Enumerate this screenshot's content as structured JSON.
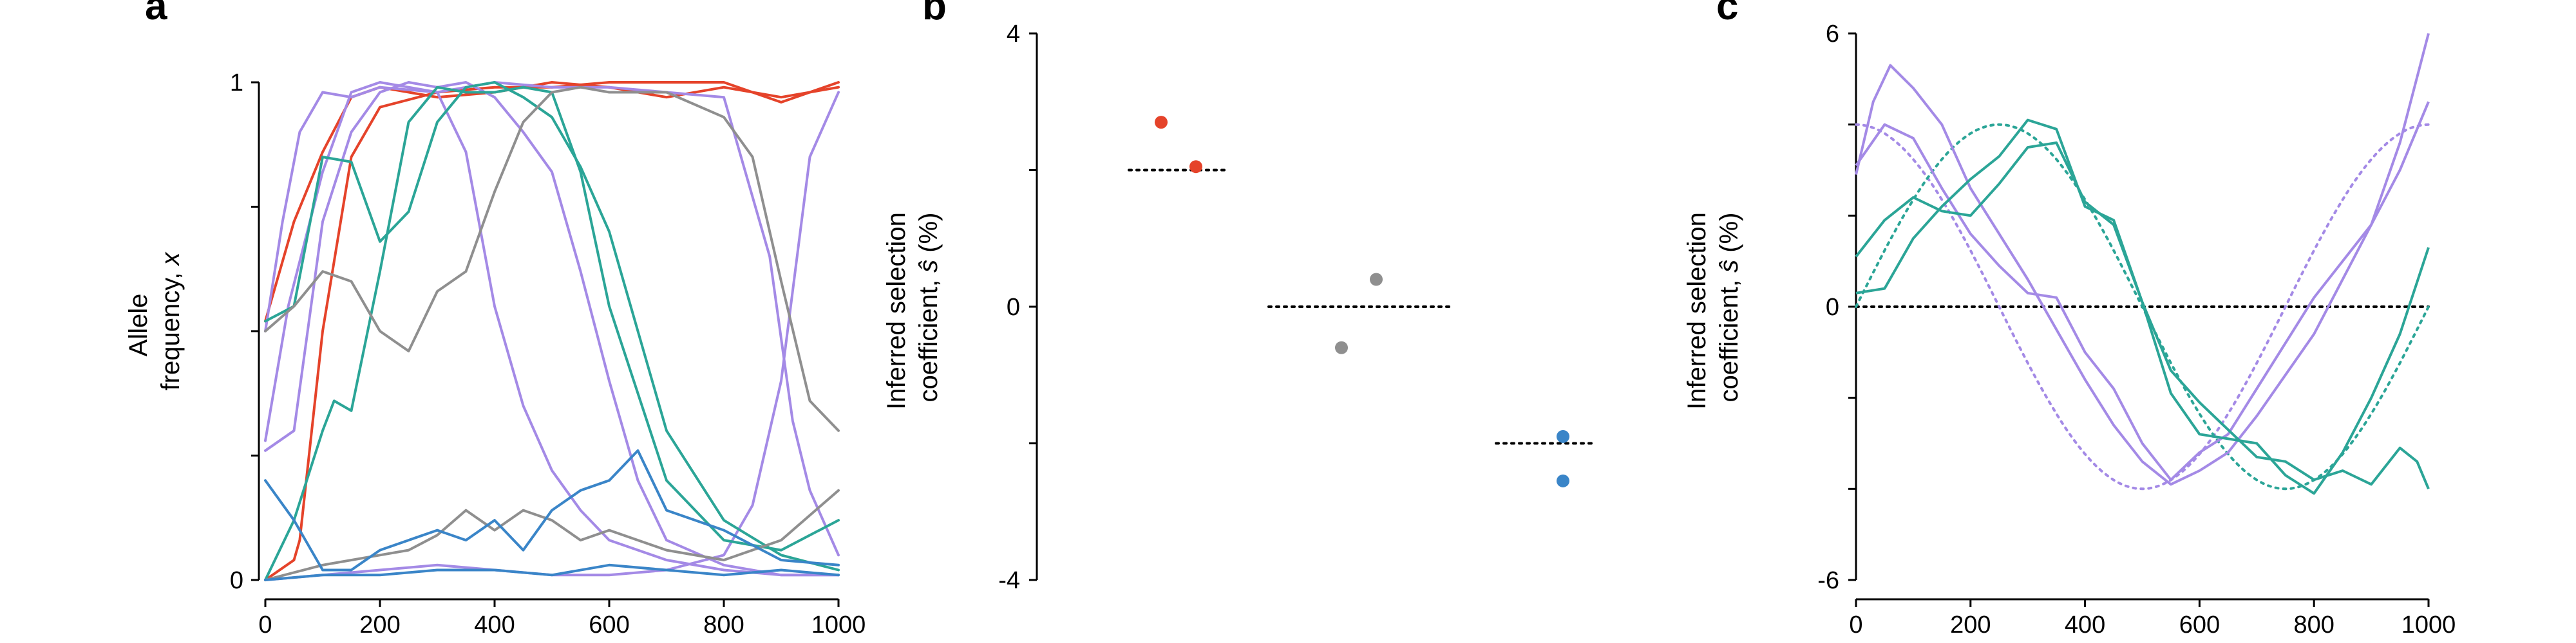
{
  "colors": {
    "red": "#e5432a",
    "purple": "#a48ae6",
    "teal": "#2ba597",
    "gray": "#8f8f8f",
    "blue": "#3a85c8",
    "black": "#000000"
  },
  "chart_data": [
    {
      "panel": "a",
      "type": "line",
      "ylabel_line1": "Allele",
      "ylabel_line2_prefix": "frequency, ",
      "ylabel_line2_var": "x",
      "xlim": [
        0,
        1000
      ],
      "ylim": [
        0,
        1
      ],
      "xticks": [
        0,
        200,
        400,
        600,
        800,
        1000
      ],
      "yticks": [
        0,
        1
      ],
      "grid": false,
      "series": [
        {
          "color": "red",
          "x": [
            0,
            50,
            100,
            150,
            200,
            300,
            400,
            500,
            600,
            700,
            800,
            900,
            1000
          ],
          "y": [
            0.52,
            0.72,
            0.86,
            0.97,
            0.99,
            0.97,
            0.98,
            1.0,
            0.99,
            0.97,
            0.99,
            0.97,
            0.99
          ]
        },
        {
          "color": "red",
          "x": [
            0,
            50,
            60,
            100,
            150,
            200,
            300,
            400,
            500,
            600,
            700,
            800,
            900,
            1000
          ],
          "y": [
            0.0,
            0.04,
            0.08,
            0.5,
            0.85,
            0.95,
            0.98,
            0.99,
            0.99,
            1.0,
            1.0,
            1.0,
            0.96,
            1.0
          ]
        },
        {
          "color": "purple",
          "x": [
            0,
            40,
            100,
            150,
            200,
            250,
            300,
            350,
            400,
            450,
            500,
            550,
            600,
            700,
            800,
            900,
            1000
          ],
          "y": [
            0.28,
            0.55,
            0.82,
            0.98,
            1.0,
            0.99,
            0.98,
            0.86,
            0.55,
            0.35,
            0.22,
            0.14,
            0.08,
            0.04,
            0.02,
            0.01,
            0.01
          ]
        },
        {
          "color": "purple",
          "x": [
            0,
            50,
            100,
            150,
            200,
            250,
            300,
            350,
            400,
            450,
            500,
            550,
            600,
            650,
            700,
            800,
            900,
            1000
          ],
          "y": [
            0.26,
            0.3,
            0.72,
            0.9,
            0.98,
            1.0,
            0.99,
            1.0,
            0.97,
            0.9,
            0.82,
            0.62,
            0.4,
            0.2,
            0.08,
            0.03,
            0.01,
            0.01
          ]
        },
        {
          "color": "purple",
          "x": [
            0,
            30,
            60,
            100,
            150,
            200,
            300,
            400,
            500,
            600,
            700,
            800,
            880,
            920,
            950,
            1000
          ],
          "y": [
            0.5,
            0.72,
            0.9,
            0.98,
            0.97,
            0.99,
            0.98,
            1.0,
            0.99,
            0.99,
            0.98,
            0.97,
            0.65,
            0.32,
            0.18,
            0.05
          ]
        },
        {
          "color": "purple",
          "x": [
            0,
            100,
            200,
            300,
            400,
            500,
            600,
            700,
            800,
            850,
            900,
            950,
            1000
          ],
          "y": [
            0.0,
            0.01,
            0.02,
            0.03,
            0.02,
            0.01,
            0.01,
            0.02,
            0.05,
            0.15,
            0.4,
            0.85,
            0.98
          ]
        },
        {
          "color": "teal",
          "x": [
            0,
            50,
            100,
            150,
            200,
            250,
            300,
            350,
            400,
            450,
            500,
            550,
            600,
            650,
            700,
            800,
            900,
            1000
          ],
          "y": [
            0.52,
            0.55,
            0.85,
            0.84,
            0.68,
            0.74,
            0.92,
            0.99,
            1.0,
            0.97,
            0.93,
            0.83,
            0.7,
            0.5,
            0.3,
            0.12,
            0.05,
            0.02
          ]
        },
        {
          "color": "teal",
          "x": [
            0,
            50,
            100,
            120,
            150,
            200,
            250,
            300,
            350,
            400,
            450,
            500,
            550,
            600,
            700,
            800,
            900,
            1000
          ],
          "y": [
            0.0,
            0.12,
            0.3,
            0.36,
            0.34,
            0.62,
            0.92,
            0.99,
            0.98,
            0.98,
            0.99,
            0.98,
            0.82,
            0.55,
            0.2,
            0.08,
            0.06,
            0.12
          ]
        },
        {
          "color": "gray",
          "x": [
            0,
            50,
            100,
            150,
            200,
            250,
            300,
            350,
            400,
            450,
            500,
            550,
            600,
            700,
            800,
            850,
            900,
            950,
            1000
          ],
          "y": [
            0.5,
            0.55,
            0.62,
            0.6,
            0.5,
            0.46,
            0.58,
            0.62,
            0.78,
            0.92,
            0.98,
            0.99,
            0.98,
            0.98,
            0.93,
            0.85,
            0.6,
            0.36,
            0.3
          ]
        },
        {
          "color": "gray",
          "x": [
            0,
            100,
            200,
            250,
            300,
            350,
            400,
            450,
            500,
            550,
            600,
            700,
            800,
            900,
            1000
          ],
          "y": [
            0.0,
            0.03,
            0.05,
            0.06,
            0.09,
            0.14,
            0.1,
            0.14,
            0.12,
            0.08,
            0.1,
            0.06,
            0.04,
            0.08,
            0.18
          ]
        },
        {
          "color": "blue",
          "x": [
            0,
            50,
            100,
            150,
            200,
            250,
            300,
            350,
            400,
            450,
            500,
            550,
            600,
            650,
            700,
            800,
            900,
            1000
          ],
          "y": [
            0.2,
            0.12,
            0.02,
            0.02,
            0.06,
            0.08,
            0.1,
            0.08,
            0.12,
            0.06,
            0.14,
            0.18,
            0.2,
            0.26,
            0.14,
            0.1,
            0.04,
            0.03
          ]
        },
        {
          "color": "blue",
          "x": [
            0,
            100,
            200,
            300,
            400,
            500,
            600,
            700,
            800,
            900,
            1000
          ],
          "y": [
            0.0,
            0.01,
            0.01,
            0.02,
            0.02,
            0.01,
            0.03,
            0.02,
            0.01,
            0.02,
            0.01
          ]
        }
      ]
    },
    {
      "panel": "b",
      "type": "scatter",
      "ylabel_line1": "Inferred selection",
      "ylabel_line2_prefix": "coefficient, ",
      "ylabel_line2_var": "ŝ",
      "ylabel_line2_suffix": " (%)",
      "ylim": [
        -4,
        4
      ],
      "yticks": [
        -4,
        0,
        4
      ],
      "points": [
        {
          "group": 0,
          "offset": -0.3,
          "y": 2.7,
          "color": "red"
        },
        {
          "group": 0,
          "offset": 0.3,
          "y": 2.05,
          "color": "red"
        },
        {
          "group": 1,
          "offset": -0.3,
          "y": -0.6,
          "color": "gray"
        },
        {
          "group": 1,
          "offset": 0.3,
          "y": 0.4,
          "color": "gray"
        },
        {
          "group": 2,
          "offset": 0.3,
          "y": -1.9,
          "color": "blue"
        },
        {
          "group": 2,
          "offset": 0.3,
          "y": -2.55,
          "color": "blue"
        }
      ],
      "true_values": [
        2.0,
        0.0,
        -2.0
      ]
    },
    {
      "panel": "c",
      "type": "line",
      "ylabel_line1": "Inferred selection",
      "ylabel_line2_prefix": "coefficient, ",
      "ylabel_line2_var": "ŝ",
      "ylabel_line2_suffix": " (%)",
      "xlim": [
        0,
        1000
      ],
      "ylim": [
        -6,
        6
      ],
      "xticks": [
        0,
        200,
        400,
        600,
        800,
        1000
      ],
      "yticks": [
        -6,
        0,
        6
      ],
      "series": [
        {
          "color": "purple",
          "x": [
            0,
            30,
            60,
            100,
            150,
            200,
            250,
            300,
            400,
            450,
            500,
            550,
            600,
            650,
            700,
            800,
            900,
            950,
            1000
          ],
          "y": [
            2.9,
            4.5,
            5.3,
            4.8,
            4.0,
            2.6,
            1.6,
            0.6,
            -1.6,
            -2.6,
            -3.4,
            -3.9,
            -3.6,
            -3.2,
            -2.4,
            -0.6,
            1.8,
            3.6,
            6.0
          ]
        },
        {
          "color": "purple",
          "x": [
            0,
            50,
            100,
            150,
            200,
            250,
            300,
            350,
            400,
            450,
            500,
            550,
            600,
            650,
            700,
            800,
            900,
            950,
            1000
          ],
          "y": [
            3.1,
            4.0,
            3.7,
            2.6,
            1.6,
            0.9,
            0.3,
            0.2,
            -1.0,
            -1.8,
            -3.0,
            -3.8,
            -3.2,
            -2.8,
            -1.8,
            0.2,
            1.8,
            3.0,
            4.5
          ]
        },
        {
          "color": "teal",
          "x": [
            0,
            50,
            100,
            150,
            200,
            250,
            300,
            350,
            400,
            450,
            500,
            550,
            600,
            650,
            700,
            750,
            800,
            850,
            900,
            950,
            1000
          ],
          "y": [
            1.1,
            1.9,
            2.4,
            2.1,
            2.0,
            2.7,
            3.5,
            3.6,
            2.3,
            1.8,
            0.1,
            -1.9,
            -2.8,
            -2.9,
            -3.0,
            -3.7,
            -4.1,
            -3.2,
            -2.0,
            -0.6,
            1.3
          ]
        },
        {
          "color": "teal",
          "x": [
            0,
            50,
            100,
            150,
            200,
            250,
            300,
            350,
            400,
            450,
            500,
            550,
            600,
            650,
            700,
            750,
            800,
            850,
            900,
            950,
            980,
            1000
          ],
          "y": [
            0.3,
            0.4,
            1.5,
            2.2,
            2.8,
            3.3,
            4.1,
            3.9,
            2.2,
            1.9,
            0.1,
            -1.4,
            -2.1,
            -2.7,
            -3.3,
            -3.4,
            -3.8,
            -3.6,
            -3.9,
            -3.1,
            -3.4,
            -4.0
          ]
        }
      ],
      "true_curves": [
        {
          "color": "purple",
          "type": "cosine",
          "amplitude": 4.0,
          "period": 1000
        },
        {
          "color": "teal",
          "type": "sine",
          "amplitude": 4.0,
          "period": 1000
        }
      ],
      "zero_line": true
    }
  ],
  "panels": {
    "a": {
      "letter": "a"
    },
    "b": {
      "letter": "b"
    },
    "c": {
      "letter": "c"
    }
  }
}
